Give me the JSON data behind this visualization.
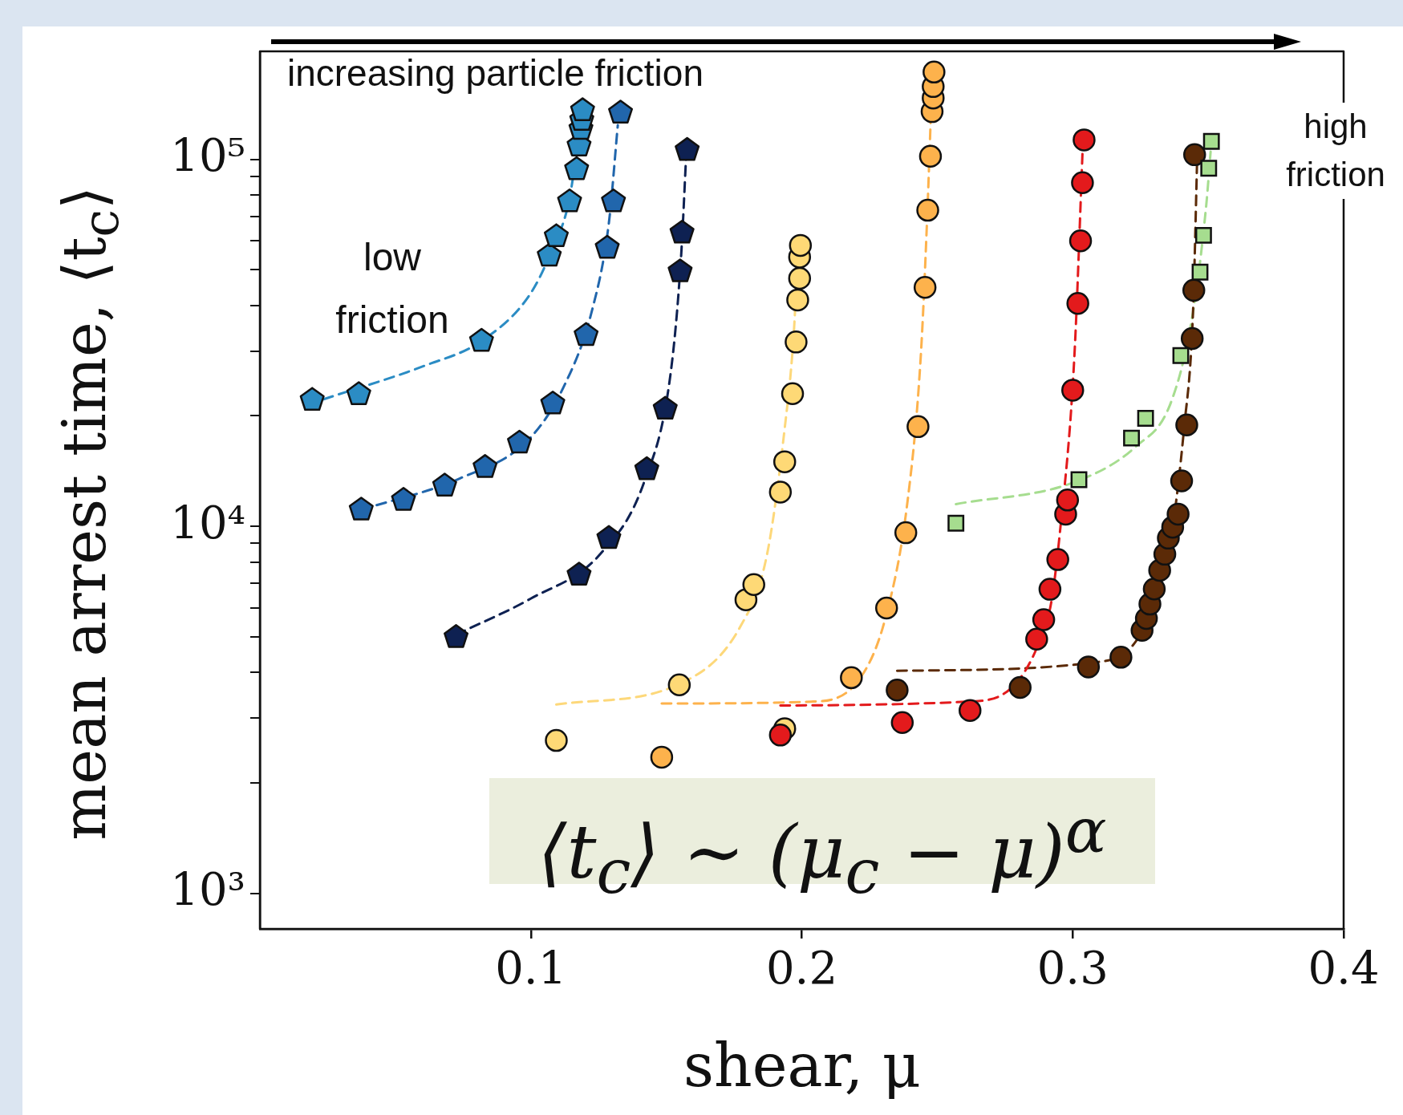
{
  "chart_data": {
    "type": "scatter",
    "xlabel": "shear, μ",
    "ylabel": "mean arrest time, ⟨t$_{c}$⟩",
    "log": "y",
    "xlim": [
      0,
      0.4
    ],
    "ylim": [
      800,
      197000
    ],
    "xticks": [
      0.1,
      0.2,
      0.3,
      0.4
    ],
    "yticks": [
      {
        "value": 1000,
        "label": "10³"
      },
      {
        "value": 2000,
        "label": null
      },
      {
        "value": 3000,
        "label": null
      },
      {
        "value": 4000,
        "label": null
      },
      {
        "value": 5000,
        "label": null
      },
      {
        "value": 6000,
        "label": null
      },
      {
        "value": 7000,
        "label": null
      },
      {
        "value": 8000,
        "label": null
      },
      {
        "value": 9000,
        "label": null
      },
      {
        "value": 10000,
        "label": "10⁴"
      },
      {
        "value": 20000,
        "label": null
      },
      {
        "value": 30000,
        "label": null
      },
      {
        "value": 40000,
        "label": null
      },
      {
        "value": 50000,
        "label": null
      },
      {
        "value": 60000,
        "label": null
      },
      {
        "value": 70000,
        "label": null
      },
      {
        "value": 80000,
        "label": null
      },
      {
        "value": 90000,
        "label": null
      },
      {
        "value": 100000,
        "label": "10⁵"
      }
    ],
    "annotations": [
      "increasing particle friction",
      "low friction",
      "high friction",
      "⟨t$_{c}$⟩ ∼ (μ$_{c}$ − μ)$^{α}$"
    ],
    "series": [
      {
        "type": "line",
        "line_style": "dashed",
        "marker": "none",
        "color": "#2b8cc4",
        "x": [
          0.0235,
          0.0608,
          0.0818,
          0.0997,
          0.1078,
          0.1143,
          0.1191
        ],
        "values": [
          22200,
          27400,
          32000,
          42900,
          56700,
          78500,
          141000
        ]
      },
      {
        "type": "line",
        "line_style": "dashed",
        "marker": "none",
        "color": "#2166ac",
        "x": [
          0.0374,
          0.0737,
          0.0997,
          0.1126,
          0.1224,
          0.1288,
          0.1321
        ],
        "values": [
          11100,
          13500,
          17400,
          24400,
          38300,
          67100,
          124000
        ]
      },
      {
        "type": "line",
        "line_style": "dashed",
        "marker": "none",
        "color": "#0e2152",
        "x": [
          0.0724,
          0.0997,
          0.1256,
          0.1418,
          0.1515,
          0.1554,
          0.1574
        ],
        "values": [
          5070,
          6340,
          8400,
          13200,
          25800,
          53600,
          105000
        ]
      },
      {
        "type": "line",
        "line_style": "dashed",
        "marker": "none",
        "color": "#fdd87a",
        "x": [
          0.1094,
          0.1548,
          0.1775,
          0.1872,
          0.1937,
          0.1969,
          0.1985
        ],
        "values": [
          3270,
          3720,
          5360,
          8400,
          18500,
          32300,
          53600
        ]
      },
      {
        "type": "line",
        "line_style": "dashed",
        "marker": "none",
        "color": "#fdb24c",
        "x": [
          0.1483,
          0.2034,
          0.2212,
          0.231,
          0.2391,
          0.2439,
          0.2462,
          0.2481
        ],
        "values": [
          3290,
          3330,
          3830,
          5670,
          11800,
          28900,
          67100,
          165000
        ]
      },
      {
        "type": "line",
        "line_style": "dashed",
        "marker": "none",
        "color": "#e31a1c",
        "x": [
          0.1921,
          0.2617,
          0.2909,
          0.2958,
          0.3006,
          0.3039
        ],
        "values": [
          3250,
          3330,
          5670,
          10500,
          28900,
          118000
        ]
      },
      {
        "type": "line",
        "line_style": "dashed",
        "marker": "none",
        "color": "#5b2a07",
        "x": [
          0.2352,
          0.3104,
          0.3266,
          0.3363,
          0.3411,
          0.3444,
          0.346
        ],
        "values": [
          4040,
          4280,
          5360,
          9400,
          18500,
          38300,
          105000
        ]
      },
      {
        "type": "line",
        "line_style": "dashed",
        "marker": "none",
        "color": "#a6dd8f",
        "x": [
          0.2569,
          0.3006,
          0.3233,
          0.3363,
          0.3444,
          0.3493,
          0.3509
        ],
        "values": [
          11500,
          13200,
          16500,
          21800,
          38300,
          75200,
          105000
        ]
      },
      {
        "color": "#2b8cc4",
        "x": [
          0.0193,
          0.0365,
          0.0818,
          0.1068,
          0.1094,
          0.1143,
          0.1169,
          0.1178,
          0.1185,
          0.1188,
          0.1191
        ],
        "values": [
          22100,
          22900,
          32000,
          54600,
          61700,
          76800,
          94000,
          109000,
          121000,
          128000,
          136000
        ]
      },
      {
        "color": "#2166ac",
        "x": [
          0.0374,
          0.053,
          0.0682,
          0.0831,
          0.0958,
          0.1081,
          0.1204,
          0.1282,
          0.1305,
          0.1331
        ],
        "values": [
          11100,
          11800,
          12900,
          14500,
          16900,
          21600,
          33200,
          57400,
          76800,
          134000
        ]
      },
      {
        "color": "#0e2152",
        "x": [
          0.0724,
          0.1178,
          0.1288,
          0.1428,
          0.1496,
          0.1551,
          0.1558,
          0.1577
        ],
        "values": [
          4990,
          7380,
          9290,
          14300,
          20900,
          49500,
          63100,
          106000
        ]
      },
      {
        "marker": "circle",
        "color": "#fed976",
        "x": [
          0.1094,
          0.1548,
          0.1794,
          0.1823,
          0.1921,
          0.1937,
          0.1966,
          0.1979,
          0.1985,
          0.1992,
          0.1992,
          0.1995,
          0.1937
        ],
        "values": [
          2610,
          3700,
          6310,
          6940,
          12400,
          15000,
          23000,
          31800,
          41400,
          47400,
          54200,
          58300,
          2810
        ]
      },
      {
        "marker": "circle",
        "color": "#fdb24c",
        "x": [
          0.1483,
          0.2183,
          0.2313,
          0.2384,
          0.2429,
          0.2455,
          0.2465,
          0.2475,
          0.2481,
          0.2485,
          0.2485,
          0.2488
        ],
        "values": [
          2350,
          3870,
          5990,
          9610,
          18700,
          44800,
          72700,
          102000,
          135000,
          147000,
          158000,
          173000
        ]
      },
      {
        "marker": "circle",
        "color": "#e31a1c",
        "x": [
          0.1921,
          0.2371,
          0.2621,
          0.2867,
          0.2893,
          0.2916,
          0.2945,
          0.2974,
          0.2981,
          0.3,
          0.3019,
          0.3029,
          0.3036,
          0.3042
        ],
        "values": [
          2700,
          2920,
          3150,
          4930,
          5570,
          6740,
          8120,
          10800,
          11800,
          23500,
          40500,
          60000,
          86400,
          113000
        ]
      },
      {
        "marker": "circle",
        "color": "#5b2a07",
        "x": [
          0.2352,
          0.2806,
          0.3058,
          0.3178,
          0.3256,
          0.3272,
          0.3285,
          0.3301,
          0.3321,
          0.334,
          0.3353,
          0.3369,
          0.3389,
          0.3402,
          0.3421,
          0.3441,
          0.3447,
          0.345
        ],
        "values": [
          3580,
          3640,
          4140,
          4400,
          5210,
          5610,
          6140,
          6750,
          7590,
          8400,
          9290,
          9950,
          10800,
          13300,
          18900,
          32500,
          44000,
          103000
        ]
      },
      {
        "marker": "square",
        "color": "#a6dd8f",
        "x": [
          0.2569,
          0.3023,
          0.3217,
          0.3269,
          0.3399,
          0.347,
          0.3483,
          0.3502,
          0.3512
        ],
        "values": [
          10200,
          13400,
          17400,
          19700,
          29200,
          49300,
          62100,
          94600,
          112000
        ]
      }
    ]
  }
}
